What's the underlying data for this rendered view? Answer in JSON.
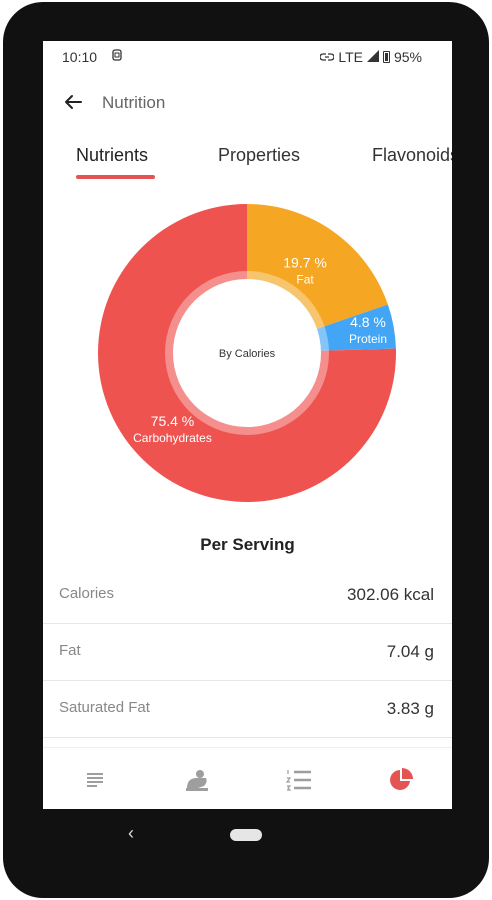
{
  "status_bar": {
    "time": "10:10",
    "network": "LTE",
    "battery": "95%",
    "icons": [
      "sim-icon",
      "link-icon",
      "signal-icon",
      "battery-icon"
    ]
  },
  "app_bar": {
    "title": "Nutrition",
    "back_icon": "arrow-left-icon"
  },
  "tabs": [
    {
      "label": "Nutrients",
      "active": true
    },
    {
      "label": "Properties",
      "active": false
    },
    {
      "label": "Flavonoids",
      "active": false
    }
  ],
  "chart_data": {
    "type": "pie",
    "subtitle": "By Calories",
    "slices": [
      {
        "label": "Fat",
        "value": 19.7,
        "display": "19.7 %",
        "color": "#f5a623"
      },
      {
        "label": "Protein",
        "value": 4.8,
        "display": "4.8 %",
        "color": "#42a5f5"
      },
      {
        "label": "Carbohydrates",
        "value": 75.4,
        "display": "75.4 %",
        "color": "#ef5350"
      }
    ]
  },
  "per_serving": {
    "heading": "Per Serving",
    "rows": [
      {
        "name": "Calories",
        "value": "302.06 kcal"
      },
      {
        "name": "Fat",
        "value": "7.04 g"
      },
      {
        "name": "Saturated Fat",
        "value": "3.83 g"
      }
    ]
  },
  "bottom_nav": {
    "items": [
      {
        "icon": "notes-icon",
        "active": false
      },
      {
        "icon": "chef-icon",
        "active": false
      },
      {
        "icon": "steps-list-icon",
        "active": false
      },
      {
        "icon": "pie-chart-icon",
        "active": true
      }
    ],
    "active_color": "#e45452",
    "inactive_color": "#9e9e9e"
  }
}
